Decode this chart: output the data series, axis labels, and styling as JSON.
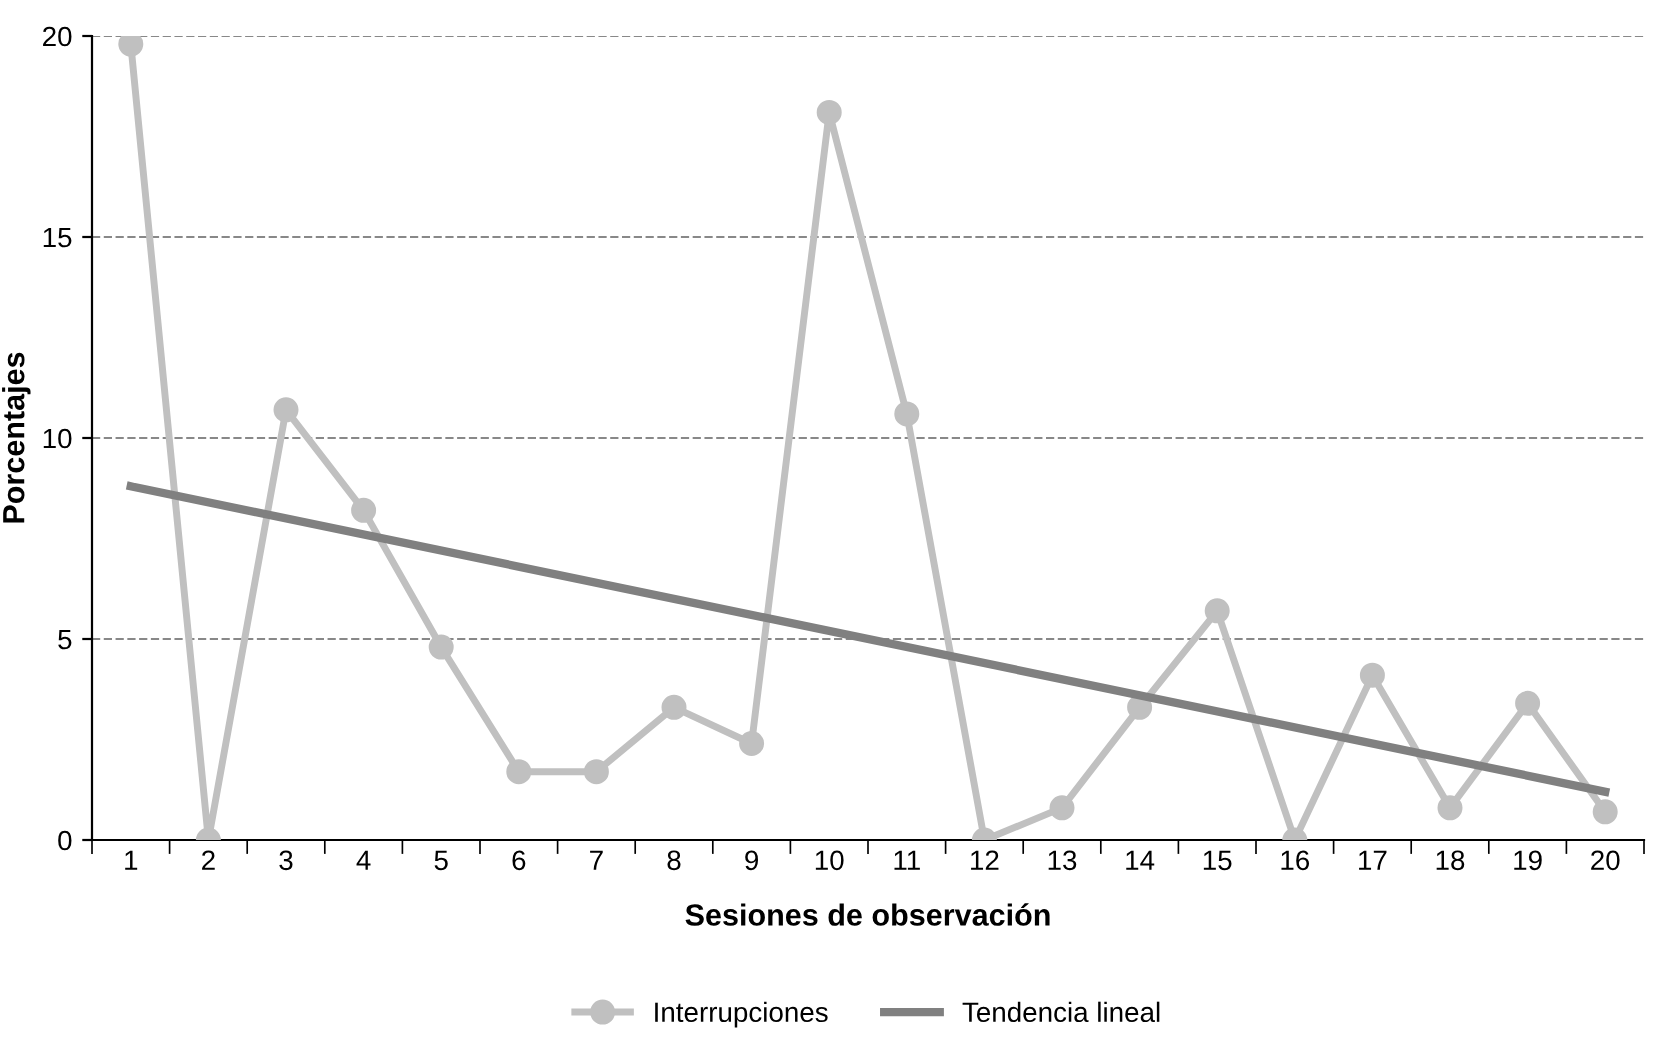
{
  "chart_data": {
    "type": "line",
    "xlabel": "Sesiones de observación",
    "ylabel": "Porcentajes",
    "categories": [
      "1",
      "2",
      "3",
      "4",
      "5",
      "6",
      "7",
      "8",
      "9",
      "10",
      "11",
      "12",
      "13",
      "14",
      "15",
      "16",
      "17",
      "18",
      "19",
      "20"
    ],
    "series": [
      {
        "name": "Interrupciones",
        "color": "#c0c0c0",
        "marker": "circle",
        "values": [
          19.8,
          0,
          10.7,
          8.2,
          4.8,
          1.7,
          1.7,
          3.3,
          2.4,
          18.1,
          10.6,
          0,
          0.8,
          3.3,
          5.7,
          0,
          4.1,
          0.8,
          3.4,
          0.7
        ]
      },
      {
        "name": "Tendencia lineal",
        "color": "#808080",
        "marker": "none",
        "x": [
          "1",
          "20"
        ],
        "values": [
          8.8,
          1.2
        ]
      }
    ],
    "ylim": [
      0,
      20
    ],
    "yticks": [
      0,
      5,
      10,
      15,
      20
    ],
    "grid": "y",
    "legend": "bottom",
    "line_style": "solid"
  }
}
